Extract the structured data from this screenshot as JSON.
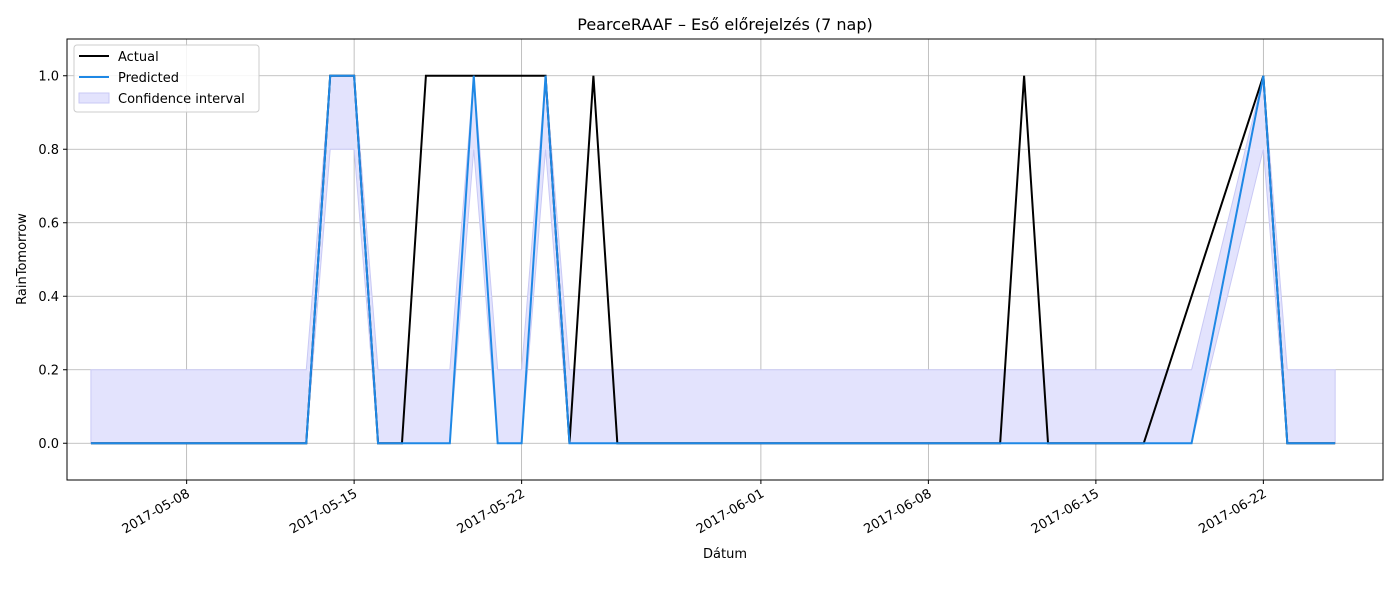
{
  "chart_data": {
    "type": "line",
    "title": "PearceRAAF – Eső előrejelzés (7 nap)",
    "xlabel": "Dátum",
    "ylabel": "RainTomorrow",
    "xlim": [
      "2017-05-03",
      "2017-06-27"
    ],
    "ylim": [
      -0.1,
      1.1
    ],
    "grid": true,
    "legend": "top-left",
    "x_ticks": [
      "2017-05-08",
      "2017-05-15",
      "2017-05-22",
      "2017-06-01",
      "2017-06-08",
      "2017-06-15",
      "2017-06-22"
    ],
    "y_ticks": [
      "0.0",
      "0.2",
      "0.4",
      "0.6",
      "0.8",
      "1.0"
    ],
    "series": [
      {
        "name": "Actual",
        "color": "#000000",
        "points": [
          [
            "2017-05-04",
            0
          ],
          [
            "2017-05-13",
            0
          ],
          [
            "2017-05-14",
            1
          ],
          [
            "2017-05-15",
            1
          ],
          [
            "2017-05-16",
            0
          ],
          [
            "2017-05-17",
            0
          ],
          [
            "2017-05-18",
            1
          ],
          [
            "2017-05-23",
            1
          ],
          [
            "2017-05-24",
            0
          ],
          [
            "2017-05-25",
            1
          ],
          [
            "2017-05-26",
            0
          ],
          [
            "2017-06-11",
            0
          ],
          [
            "2017-06-12",
            1
          ],
          [
            "2017-06-13",
            0
          ],
          [
            "2017-06-17",
            0
          ],
          [
            "2017-06-22",
            1
          ],
          [
            "2017-06-23",
            0
          ],
          [
            "2017-06-25",
            0
          ]
        ]
      },
      {
        "name": "Predicted",
        "color": "#1e88e5",
        "points": [
          [
            "2017-05-04",
            0
          ],
          [
            "2017-05-13",
            0
          ],
          [
            "2017-05-14",
            1
          ],
          [
            "2017-05-15",
            1
          ],
          [
            "2017-05-16",
            0
          ],
          [
            "2017-05-19",
            0
          ],
          [
            "2017-05-20",
            1
          ],
          [
            "2017-05-21",
            0
          ],
          [
            "2017-05-22",
            0
          ],
          [
            "2017-05-23",
            1
          ],
          [
            "2017-05-24",
            0
          ],
          [
            "2017-06-19",
            0
          ],
          [
            "2017-06-22",
            1
          ],
          [
            "2017-06-23",
            0
          ],
          [
            "2017-06-25",
            0
          ]
        ]
      }
    ],
    "confidence_interval": {
      "name": "Confidence interval",
      "color": "#e3e3fd",
      "edge_color": "#c9c9f5",
      "points": [
        [
          "2017-05-04",
          0,
          0.2
        ],
        [
          "2017-05-13",
          0,
          0.2
        ],
        [
          "2017-05-14",
          0.8,
          1
        ],
        [
          "2017-05-15",
          0.8,
          1
        ],
        [
          "2017-05-16",
          0,
          0.2
        ],
        [
          "2017-05-19",
          0,
          0.2
        ],
        [
          "2017-05-20",
          0.8,
          1
        ],
        [
          "2017-05-21",
          0,
          0.2
        ],
        [
          "2017-05-22",
          0,
          0.2
        ],
        [
          "2017-05-23",
          0.8,
          1
        ],
        [
          "2017-05-24",
          0,
          0.2
        ],
        [
          "2017-06-19",
          0,
          0.2
        ],
        [
          "2017-06-22",
          0.8,
          1
        ],
        [
          "2017-06-23",
          0,
          0.2
        ],
        [
          "2017-06-25",
          0,
          0.2
        ]
      ]
    }
  }
}
